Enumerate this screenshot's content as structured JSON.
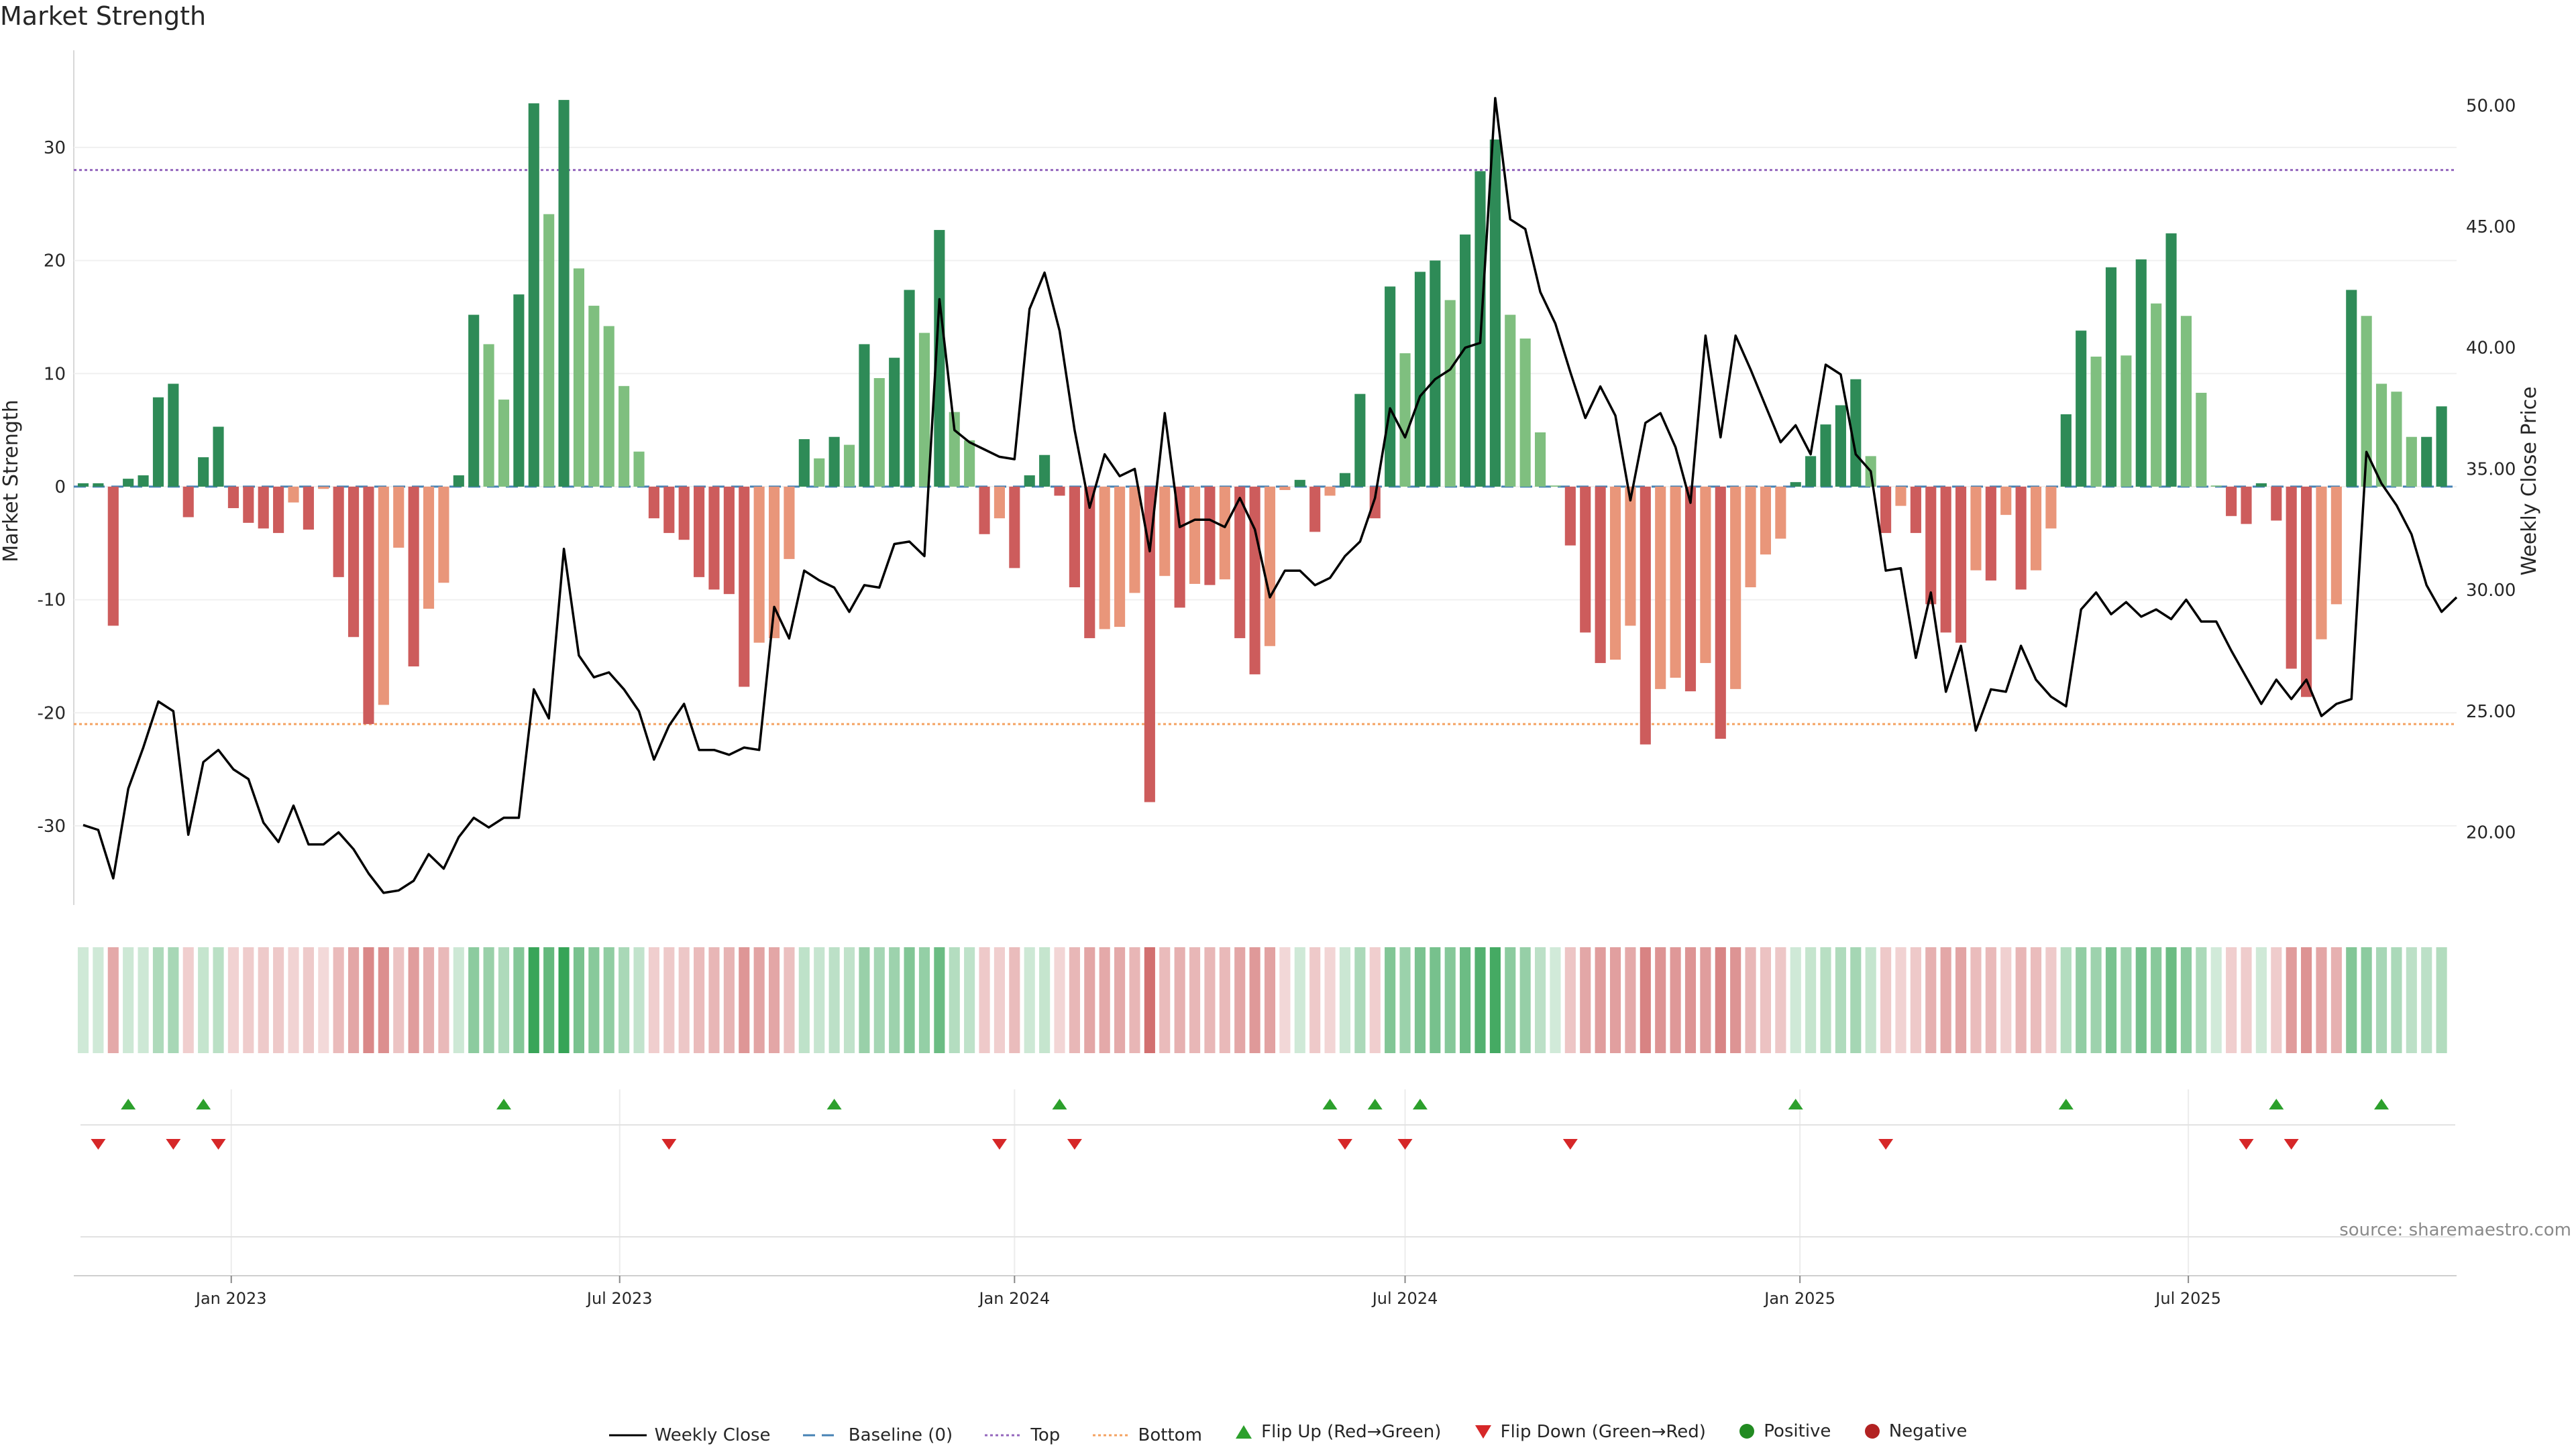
{
  "title": "Market Strength",
  "source_note": "source: sharemaestro.com",
  "chart_data": {
    "type": "bar",
    "title": "Market Strength",
    "x_start": "2022-10-24",
    "x_interval": "weekly",
    "xticks": [
      "Jan 2023",
      "Jul 2023",
      "Jan 2024",
      "Jul 2024",
      "Jan 2025",
      "Jul 2025"
    ],
    "xtick_dates": [
      "2023-01-01",
      "2023-07-01",
      "2024-01-01",
      "2024-07-01",
      "2025-01-01",
      "2025-07-01"
    ],
    "ylabel_left": "Market Strength",
    "ylabel_right": "Weekly Close Price",
    "ylim_left": [
      -37,
      38
    ],
    "ylim_right": [
      17,
      52
    ],
    "yticks_left": [
      -30,
      -20,
      -10,
      0,
      10,
      20,
      30
    ],
    "yticks_right": [
      "20.00",
      "25.00",
      "30.00",
      "35.00",
      "40.00",
      "45.00",
      "50.00"
    ],
    "top_line": 28,
    "bottom_line": -21,
    "strength": [
      0.3,
      0.3,
      -12.3,
      0.7,
      1.0,
      7.9,
      9.1,
      -2.7,
      2.6,
      5.3,
      -1.9,
      -3.2,
      -3.7,
      -4.1,
      -1.4,
      -3.8,
      -0.2,
      -8.0,
      -13.3,
      -21.0,
      -19.3,
      -5.4,
      -15.9,
      -10.8,
      -8.5,
      1.0,
      15.2,
      12.6,
      7.7,
      17.0,
      33.9,
      24.1,
      34.2,
      19.3,
      16.0,
      14.2,
      8.9,
      3.1,
      -2.8,
      -4.1,
      -4.7,
      -8.0,
      -9.1,
      -9.5,
      -17.7,
      -13.8,
      -13.4,
      -6.4,
      4.2,
      2.5,
      4.4,
      3.7,
      12.6,
      9.6,
      11.4,
      17.4,
      13.6,
      22.7,
      6.6,
      4.1,
      -4.2,
      -2.8,
      -7.2,
      1.0,
      2.8,
      -0.8,
      -8.9,
      -13.4,
      -12.6,
      -12.4,
      -9.4,
      -27.9,
      -7.9,
      -10.7,
      -8.6,
      -8.7,
      -8.2,
      -13.4,
      -16.6,
      -14.1,
      -0.3,
      0.6,
      -4.0,
      -0.8,
      1.2,
      8.2,
      -2.8,
      17.7,
      11.8,
      19.0,
      20.0,
      16.5,
      22.3,
      27.9,
      30.7,
      15.2,
      13.1,
      4.8,
      0.1,
      -5.2,
      -12.9,
      -15.6,
      -15.3,
      -12.3,
      -22.8,
      -17.9,
      -16.9,
      -18.1,
      -15.6,
      -22.3,
      -17.9,
      -8.9,
      -6.0,
      -4.6,
      0.4,
      2.7,
      5.5,
      7.2,
      9.5,
      2.7,
      -4.1,
      -1.7,
      -4.1,
      -10.4,
      -12.9,
      -13.8,
      -7.4,
      -8.3,
      -2.5,
      -9.1,
      -7.4,
      -3.7,
      6.4,
      13.8,
      11.5,
      19.4,
      11.6,
      20.1,
      16.2,
      22.4,
      15.1,
      8.3,
      0.1,
      -2.6,
      -3.3,
      0.3,
      -3.0,
      -16.1,
      -18.6,
      -13.5,
      -10.4,
      17.4,
      15.1,
      9.1,
      8.4,
      4.4,
      4.4,
      7.1
    ],
    "close": [
      20.3,
      20.1,
      18.1,
      21.8,
      23.5,
      25.4,
      25.0,
      19.9,
      22.9,
      23.4,
      22.6,
      22.2,
      20.4,
      19.6,
      21.1,
      19.5,
      19.5,
      20.0,
      19.3,
      18.3,
      17.5,
      17.6,
      18.0,
      19.1,
      18.5,
      19.8,
      20.6,
      20.2,
      20.6,
      20.6,
      25.9,
      24.7,
      31.7,
      27.3,
      26.4,
      26.6,
      25.9,
      25.0,
      23.0,
      24.4,
      25.3,
      23.4,
      23.4,
      23.2,
      23.5,
      23.4,
      29.3,
      28.0,
      30.8,
      30.4,
      30.1,
      29.1,
      30.2,
      30.1,
      31.9,
      32.0,
      31.4,
      42.0,
      36.6,
      36.1,
      35.8,
      35.5,
      35.4,
      41.6,
      43.1,
      40.7,
      36.6,
      33.4,
      35.6,
      34.7,
      35.0,
      31.6,
      37.3,
      32.6,
      32.9,
      32.9,
      32.6,
      33.8,
      32.5,
      29.7,
      30.8,
      30.8,
      30.2,
      30.5,
      31.4,
      32.0,
      33.8,
      37.5,
      36.3,
      38.0,
      38.7,
      39.1,
      40.0,
      40.2,
      50.3,
      45.3,
      44.9,
      42.3,
      41.0,
      39.0,
      37.1,
      38.4,
      37.2,
      33.7,
      36.9,
      37.3,
      35.9,
      33.6,
      40.5,
      36.3,
      40.5,
      39.1,
      37.6,
      36.1,
      36.8,
      35.6,
      39.3,
      38.9,
      35.6,
      34.9,
      30.8,
      30.9,
      27.2,
      29.9,
      25.8,
      27.7,
      24.2,
      25.9,
      25.8,
      27.7,
      26.3,
      25.6,
      25.2,
      29.2,
      29.9,
      29.0,
      29.5,
      28.9,
      29.2,
      28.8,
      29.6,
      28.7,
      28.7,
      27.5,
      26.4,
      25.3,
      26.3,
      25.5,
      26.3,
      24.8,
      25.3,
      25.5,
      35.7,
      34.4,
      33.5,
      32.3,
      30.2,
      29.1,
      29.7
    ],
    "flip_up_dates": [
      "2022-11-14",
      "2022-12-19",
      "2023-05-08",
      "2023-10-09",
      "2024-01-22",
      "2024-05-27",
      "2024-06-17",
      "2024-07-08",
      "2024-12-30",
      "2025-05-05",
      "2025-08-11",
      "2025-09-29"
    ],
    "flip_down_dates": [
      "2022-10-31",
      "2022-12-05",
      "2022-12-26",
      "2023-07-24",
      "2023-12-25",
      "2024-01-29",
      "2024-06-03",
      "2024-07-01",
      "2024-09-16",
      "2025-02-10",
      "2025-07-28",
      "2025-08-18"
    ],
    "legend": [
      "Weekly Close",
      "Baseline (0)",
      "Top",
      "Bottom",
      "Flip Up (Red→Green)",
      "Flip Down (Green→Red)",
      "Positive",
      "Negative"
    ],
    "colors": {
      "strong_green": "#2e8b57",
      "light_green": "#7fbf7f",
      "strong_red": "#cd5c5c",
      "light_red": "#e9967a",
      "close_line": "#000000",
      "baseline": "#4682b4",
      "top_line": "#9467bd",
      "bottom_line": "#f4a261",
      "flip_up": "#2ca02c",
      "flip_down": "#d62728",
      "positive_dot": "#228b22",
      "negative_dot": "#b22222"
    }
  }
}
